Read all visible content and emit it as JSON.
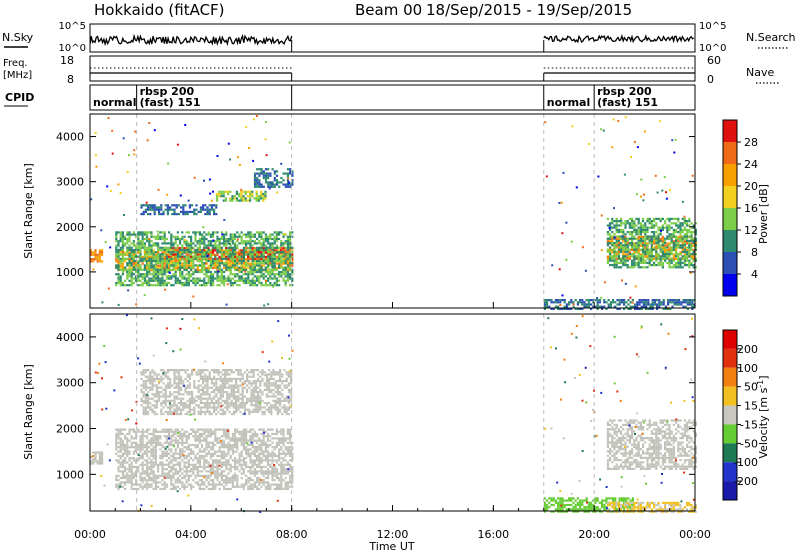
{
  "header": {
    "site": "Hokkaido (fitACF)",
    "beam": "Beam 00",
    "date_range": "18/Sep/2015 - 19/Sep/2015"
  },
  "strip_labels": {
    "nsky": "N.Sky",
    "nsky_ticks": [
      "10^5",
      "10^0"
    ],
    "nsearch": "N.Search",
    "nsearch_ticks": [
      "10^5",
      "10^0"
    ],
    "freq": "Freq.",
    "freq_unit": "[MHz]",
    "freq_ticks": [
      "18",
      "8"
    ],
    "nave": "Nave",
    "nave_ticks": [
      "60",
      "0"
    ],
    "cpid": "CPID"
  },
  "cpid_segments": [
    {
      "label": "normal",
      "start_hour": 0.0
    },
    {
      "label": "rbsp 200",
      "label2": "(fast) 151",
      "start_hour": 1.85
    },
    {
      "label": "normal",
      "start_hour": 18.0
    },
    {
      "label": "rbsp 200",
      "label2": "(fast) 151",
      "start_hour": 20.0
    }
  ],
  "x_axis": {
    "label": "Time UT",
    "ticks": [
      "00:00",
      "04:00",
      "08:00",
      "12:00",
      "16:00",
      "20:00",
      "00:00"
    ],
    "range_hours": [
      0,
      24
    ]
  },
  "colors": {
    "power_scale": [
      "#0000ee",
      "#2b4fb5",
      "#2e8a6e",
      "#7ccd4a",
      "#f2d022",
      "#f7a000",
      "#f06a1a",
      "#e01010"
    ],
    "velocity_scale": [
      "#1a1aaa",
      "#2233cc",
      "#1e7a55",
      "#66cc33",
      "#c8c8c0",
      "#f2c020",
      "#f08010",
      "#e03010",
      "#dd0000"
    ],
    "ground_scatter": "#c0c0b8"
  },
  "chart_data": [
    {
      "type": "heatmap",
      "panel": "power",
      "ylabel": "Slant Range [km]",
      "yticks": [
        "1000",
        "2000",
        "3000",
        "4000"
      ],
      "ylim": [
        200,
        4500
      ],
      "xlim": [
        0,
        24
      ],
      "colorbar_label": "Power [dB]",
      "colorbar_ticks": [
        "4",
        "8",
        "12",
        "16",
        "20",
        "24",
        "28"
      ],
      "colorbar_range": [
        0,
        32
      ],
      "data_gaps_hours": [
        [
          8,
          18
        ]
      ],
      "bands": [
        {
          "t0": 0.0,
          "t1": 0.5,
          "r0": 1250,
          "r1": 1500,
          "level": 24
        },
        {
          "t0": 1.0,
          "t1": 8.0,
          "r0": 1050,
          "r1": 1500,
          "level": 22
        },
        {
          "t0": 3.0,
          "t1": 8.0,
          "r0": 1300,
          "r1": 1550,
          "level": 28
        },
        {
          "t0": 1.0,
          "t1": 8.0,
          "r0": 700,
          "r1": 1900,
          "level": 12
        },
        {
          "t0": 2.0,
          "t1": 5.0,
          "r0": 2300,
          "r1": 2500,
          "level": 8
        },
        {
          "t0": 5.0,
          "t1": 7.0,
          "r0": 2600,
          "r1": 2800,
          "level": 14
        },
        {
          "t0": 6.5,
          "t1": 8.0,
          "r0": 2900,
          "r1": 3300,
          "level": 8
        },
        {
          "t0": 20.5,
          "t1": 24.0,
          "r0": 1300,
          "r1": 1800,
          "level": 24
        },
        {
          "t0": 20.5,
          "t1": 24.0,
          "r0": 1100,
          "r1": 2200,
          "level": 12
        },
        {
          "t0": 18.0,
          "t1": 24.0,
          "r0": 200,
          "r1": 400,
          "level": 8
        }
      ]
    },
    {
      "type": "heatmap",
      "panel": "velocity",
      "ylabel": "Slant Range [km]",
      "yticks": [
        "1000",
        "2000",
        "3000",
        "4000"
      ],
      "ylim": [
        200,
        4500
      ],
      "xlim": [
        0,
        24
      ],
      "colorbar_label": "Velocity [m s^-1]",
      "colorbar_ticks": [
        "200",
        "100",
        "50",
        "15",
        "-15",
        "-50",
        "-100",
        "-200"
      ],
      "colorbar_range": [
        -250,
        250
      ],
      "data_gaps_hours": [
        [
          8,
          18
        ]
      ],
      "bands": [
        {
          "t0": 0.0,
          "t1": 0.5,
          "r0": 1250,
          "r1": 1500,
          "level": 0
        },
        {
          "t0": 1.0,
          "t1": 8.0,
          "r0": 700,
          "r1": 2000,
          "level": 0
        },
        {
          "t0": 2.0,
          "t1": 8.0,
          "r0": 2300,
          "r1": 3300,
          "level": 0
        },
        {
          "t0": 20.5,
          "t1": 24.0,
          "r0": 1100,
          "r1": 2200,
          "level": 0
        },
        {
          "t0": 18.0,
          "t1": 21.5,
          "r0": 200,
          "r1": 500,
          "level": -60
        },
        {
          "t0": 20.5,
          "t1": 24.0,
          "r0": 200,
          "r1": 400,
          "level": 30
        }
      ]
    }
  ]
}
